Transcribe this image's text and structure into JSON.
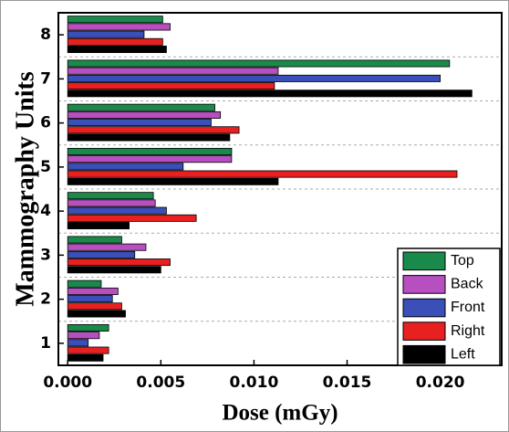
{
  "chart_data": {
    "type": "bar",
    "orientation": "horizontal",
    "x_label": "Dose (mGy)",
    "y_label": "Mammography Units",
    "categories": [
      "1",
      "2",
      "3",
      "4",
      "5",
      "6",
      "7",
      "8"
    ],
    "series": [
      {
        "name": "Top",
        "color": "#1a8a4a",
        "values": [
          0.0022,
          0.0018,
          0.0029,
          0.0046,
          0.0088,
          0.0079,
          0.0205,
          0.0051
        ]
      },
      {
        "name": "Back",
        "color": "#b84fc0",
        "values": [
          0.0017,
          0.0027,
          0.0042,
          0.0047,
          0.0088,
          0.0082,
          0.0113,
          0.0055
        ]
      },
      {
        "name": "Front",
        "color": "#3a4fb8",
        "values": [
          0.0011,
          0.0024,
          0.0036,
          0.0053,
          0.0062,
          0.0077,
          0.02,
          0.0041
        ]
      },
      {
        "name": "Right",
        "color": "#e82020",
        "values": [
          0.0022,
          0.0029,
          0.0055,
          0.0069,
          0.0209,
          0.0092,
          0.0111,
          0.0051
        ]
      },
      {
        "name": "Left",
        "color": "#000000",
        "values": [
          0.0019,
          0.0031,
          0.005,
          0.0033,
          0.0113,
          0.0087,
          0.0217,
          0.0053
        ]
      }
    ],
    "xlim": [
      -0.0005,
      0.0233
    ],
    "xticks": [
      {
        "value": 0,
        "label": "0.000"
      },
      0.005,
      {
        "value": 0.01,
        "label": "0.010"
      },
      0.015,
      {
        "value": 0.02,
        "label": "0.020"
      }
    ],
    "legend": "lower right"
  }
}
